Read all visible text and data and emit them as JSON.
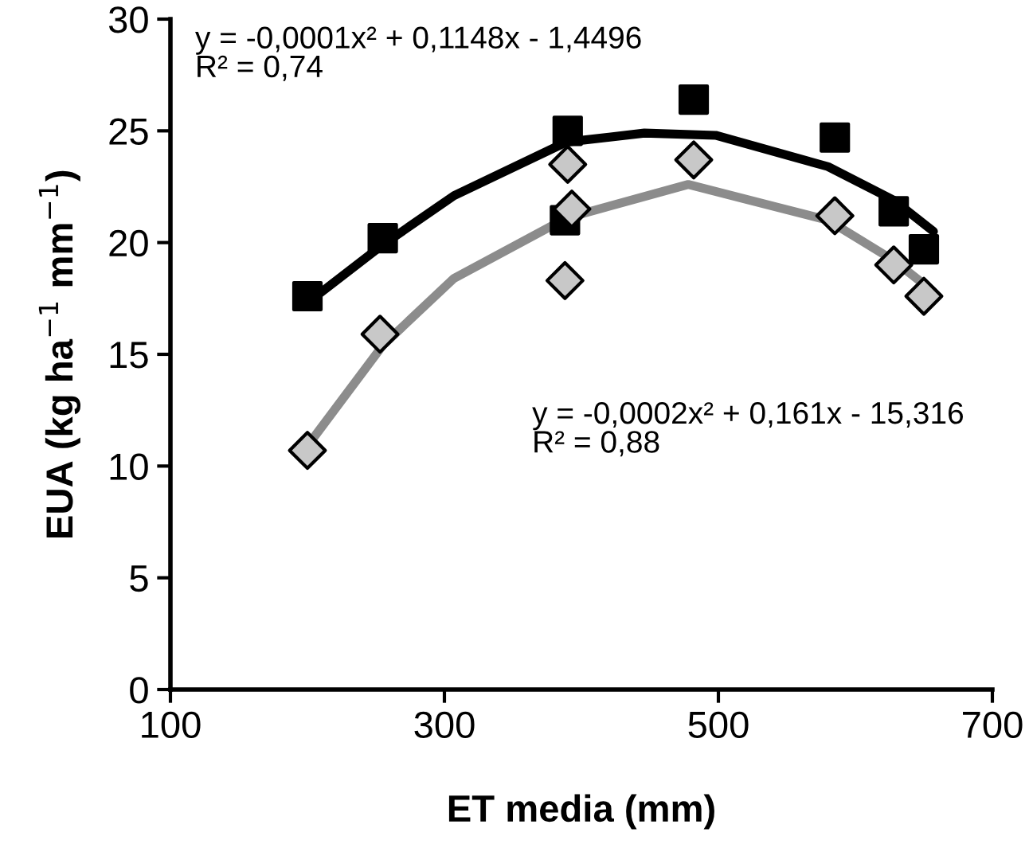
{
  "chart_data": {
    "type": "scatter",
    "xlabel": "ET media (mm)",
    "ylabel": "EUA (kg ha$^{−1}$ mm$^{−1}$)",
    "xlim": [
      100,
      700
    ],
    "xticks": [
      100,
      300,
      500,
      700
    ],
    "ylim": [
      0,
      30
    ],
    "yticks": [
      0,
      5,
      10,
      15,
      20,
      25,
      30
    ],
    "grid": false,
    "legend": false,
    "series": [
      {
        "type": "line",
        "color": "#000000",
        "marker": "none",
        "x": [
          200,
          255,
          307,
          389,
          446,
          498,
          580,
          628,
          657
        ],
        "values": [
          17.3,
          19.9,
          22.1,
          24.5,
          24.9,
          24.8,
          23.4,
          21.9,
          20.5
        ]
      },
      {
        "type": "line",
        "color": "#8c8c8c",
        "marker": "none",
        "x": [
          200,
          255,
          307,
          389,
          478,
          580,
          628,
          657
        ],
        "values": [
          10.9,
          15.4,
          18.4,
          21.1,
          22.6,
          21.0,
          19.2,
          17.8
        ]
      },
      {
        "color": "#000000",
        "marker": "square",
        "x": [
          200,
          255,
          390,
          388,
          482,
          585,
          628,
          650
        ],
        "values": [
          17.6,
          20.2,
          25.0,
          21.0,
          26.4,
          24.7,
          21.4,
          19.7
        ]
      },
      {
        "color": "#c8c8c8",
        "marker": "diamond",
        "x": [
          200,
          253,
          390,
          393,
          388,
          482,
          585,
          628,
          650
        ],
        "values": [
          10.7,
          15.9,
          23.5,
          21.5,
          18.3,
          23.7,
          21.2,
          19.0,
          17.6
        ]
      }
    ],
    "annotations": [
      "y = -0,0001x² + 0,1148x - 1,4496\nR² = 0,74",
      "y = -0,0002x² + 0,161x - 15,316\nR² = 0,88"
    ]
  }
}
